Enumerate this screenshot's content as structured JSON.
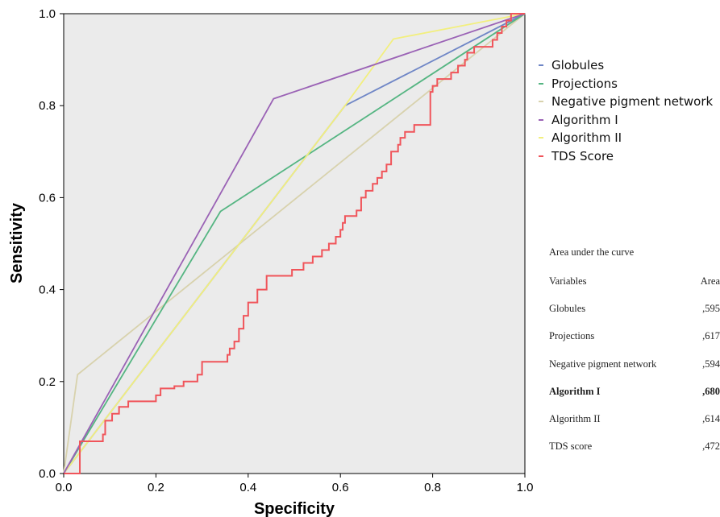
{
  "chart_data": {
    "type": "line",
    "xlabel": "Specificity",
    "ylabel": "Sensitivity",
    "xlim": [
      0.0,
      1.0
    ],
    "ylim": [
      0.0,
      1.0
    ],
    "x_ticks": [
      "0.0",
      "0.2",
      "0.4",
      "0.6",
      "0.8",
      "1.0"
    ],
    "y_ticks": [
      "0.0",
      "0.2",
      "0.4",
      "0.6",
      "0.8",
      "1.0"
    ],
    "grid": false,
    "background_color": "#ebebeb",
    "legend_position": "right",
    "series": [
      {
        "name": "Globules",
        "color": "#6f86c6",
        "step": false,
        "points": [
          [
            0.0,
            0.0
          ],
          [
            0.61,
            0.8
          ],
          [
            1.0,
            1.0
          ]
        ]
      },
      {
        "name": "Projections",
        "color": "#55b582",
        "step": false,
        "points": [
          [
            0.0,
            0.0
          ],
          [
            0.34,
            0.57
          ],
          [
            1.0,
            1.0
          ]
        ]
      },
      {
        "name": "Negative pigment network",
        "color": "#d8d2ad",
        "step": false,
        "points": [
          [
            0.0,
            0.0
          ],
          [
            0.03,
            0.215
          ],
          [
            1.0,
            1.0
          ]
        ]
      },
      {
        "name": "Algorithm I",
        "color": "#9a62b5",
        "step": false,
        "points": [
          [
            0.0,
            0.0
          ],
          [
            0.455,
            0.815
          ],
          [
            1.0,
            1.0
          ]
        ]
      },
      {
        "name": "Algorithm II",
        "color": "#f2ef7e",
        "step": false,
        "points": [
          [
            0.0,
            0.0
          ],
          [
            0.61,
            0.8
          ],
          [
            0.715,
            0.945
          ],
          [
            1.0,
            1.0
          ]
        ]
      },
      {
        "name": "TDS Score",
        "color": "#f0545a",
        "step": true,
        "points": [
          [
            0.0,
            0.0
          ],
          [
            0.035,
            0.0
          ],
          [
            0.035,
            0.07
          ],
          [
            0.085,
            0.07
          ],
          [
            0.085,
            0.085
          ],
          [
            0.09,
            0.085
          ],
          [
            0.09,
            0.115
          ],
          [
            0.105,
            0.115
          ],
          [
            0.105,
            0.13
          ],
          [
            0.12,
            0.13
          ],
          [
            0.12,
            0.145
          ],
          [
            0.14,
            0.145
          ],
          [
            0.14,
            0.157
          ],
          [
            0.2,
            0.157
          ],
          [
            0.2,
            0.17
          ],
          [
            0.21,
            0.17
          ],
          [
            0.21,
            0.185
          ],
          [
            0.24,
            0.185
          ],
          [
            0.24,
            0.19
          ],
          [
            0.26,
            0.19
          ],
          [
            0.26,
            0.2
          ],
          [
            0.29,
            0.2
          ],
          [
            0.29,
            0.215
          ],
          [
            0.3,
            0.215
          ],
          [
            0.3,
            0.243
          ],
          [
            0.355,
            0.243
          ],
          [
            0.355,
            0.258
          ],
          [
            0.36,
            0.258
          ],
          [
            0.36,
            0.272
          ],
          [
            0.37,
            0.272
          ],
          [
            0.37,
            0.287
          ],
          [
            0.38,
            0.287
          ],
          [
            0.38,
            0.315
          ],
          [
            0.39,
            0.315
          ],
          [
            0.39,
            0.343
          ],
          [
            0.4,
            0.343
          ],
          [
            0.4,
            0.372
          ],
          [
            0.42,
            0.372
          ],
          [
            0.42,
            0.4
          ],
          [
            0.44,
            0.4
          ],
          [
            0.44,
            0.43
          ],
          [
            0.495,
            0.43
          ],
          [
            0.495,
            0.443
          ],
          [
            0.52,
            0.443
          ],
          [
            0.52,
            0.458
          ],
          [
            0.54,
            0.458
          ],
          [
            0.54,
            0.472
          ],
          [
            0.56,
            0.472
          ],
          [
            0.56,
            0.486
          ],
          [
            0.575,
            0.486
          ],
          [
            0.575,
            0.5
          ],
          [
            0.59,
            0.5
          ],
          [
            0.59,
            0.515
          ],
          [
            0.6,
            0.515
          ],
          [
            0.6,
            0.53
          ],
          [
            0.605,
            0.53
          ],
          [
            0.605,
            0.545
          ],
          [
            0.61,
            0.545
          ],
          [
            0.61,
            0.56
          ],
          [
            0.635,
            0.56
          ],
          [
            0.635,
            0.572
          ],
          [
            0.645,
            0.572
          ],
          [
            0.645,
            0.6
          ],
          [
            0.655,
            0.6
          ],
          [
            0.655,
            0.615
          ],
          [
            0.67,
            0.615
          ],
          [
            0.67,
            0.63
          ],
          [
            0.68,
            0.63
          ],
          [
            0.68,
            0.643
          ],
          [
            0.69,
            0.643
          ],
          [
            0.69,
            0.657
          ],
          [
            0.7,
            0.657
          ],
          [
            0.7,
            0.672
          ],
          [
            0.71,
            0.672
          ],
          [
            0.71,
            0.7
          ],
          [
            0.725,
            0.7
          ],
          [
            0.725,
            0.715
          ],
          [
            0.73,
            0.715
          ],
          [
            0.73,
            0.73
          ],
          [
            0.74,
            0.73
          ],
          [
            0.74,
            0.743
          ],
          [
            0.76,
            0.743
          ],
          [
            0.76,
            0.758
          ],
          [
            0.795,
            0.758
          ],
          [
            0.795,
            0.83
          ],
          [
            0.8,
            0.83
          ],
          [
            0.8,
            0.843
          ],
          [
            0.81,
            0.843
          ],
          [
            0.81,
            0.858
          ],
          [
            0.84,
            0.858
          ],
          [
            0.84,
            0.872
          ],
          [
            0.855,
            0.872
          ],
          [
            0.855,
            0.887
          ],
          [
            0.87,
            0.887
          ],
          [
            0.87,
            0.9
          ],
          [
            0.875,
            0.9
          ],
          [
            0.875,
            0.915
          ],
          [
            0.89,
            0.915
          ],
          [
            0.89,
            0.928
          ],
          [
            0.93,
            0.928
          ],
          [
            0.93,
            0.943
          ],
          [
            0.94,
            0.943
          ],
          [
            0.94,
            0.958
          ],
          [
            0.95,
            0.958
          ],
          [
            0.95,
            0.972
          ],
          [
            0.96,
            0.972
          ],
          [
            0.96,
            0.985
          ],
          [
            0.97,
            0.985
          ],
          [
            0.97,
            1.0
          ],
          [
            1.0,
            1.0
          ]
        ]
      }
    ],
    "auc_table": {
      "title": "Area under the curve",
      "header": {
        "variable": "Variables",
        "value": "Area"
      },
      "rows": [
        {
          "variable": "Globules",
          "area": ",595",
          "bold": false
        },
        {
          "variable": "Projections",
          "area": ",617",
          "bold": false
        },
        {
          "variable": "Negative pigment network",
          "area": ",594",
          "bold": false
        },
        {
          "variable": "Algorithm I",
          "area": ",680",
          "bold": true
        },
        {
          "variable": "Algorithm II",
          "area": ",614",
          "bold": false
        },
        {
          "variable": "TDS score",
          "area": ",472",
          "bold": false
        }
      ]
    }
  }
}
